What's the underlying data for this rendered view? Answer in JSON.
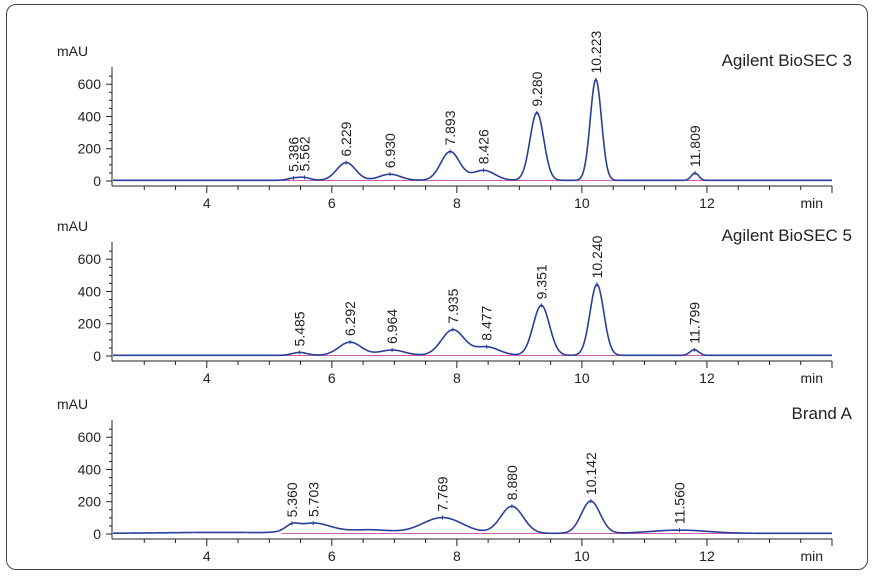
{
  "chart_data": [
    {
      "type": "line",
      "title": "Agilent BioSEC 3",
      "ylabel": "mAU",
      "xlabel": "min",
      "xlim": [
        2.5,
        14.0
      ],
      "ylim": [
        -15,
        680
      ],
      "x_ticks": [
        4,
        6,
        8,
        10,
        12
      ],
      "y_ticks": [
        0,
        200,
        400,
        600
      ],
      "peaks": [
        {
          "x": 5.386,
          "y": 12,
          "label": "5.386",
          "w": 0.1
        },
        {
          "x": 5.562,
          "y": 16,
          "label": "5.562",
          "w": 0.1
        },
        {
          "x": 6.229,
          "y": 110,
          "label": "6.229",
          "w": 0.15
        },
        {
          "x": 6.93,
          "y": 38,
          "label": "6.930",
          "w": 0.17
        },
        {
          "x": 7.893,
          "y": 178,
          "label": "7.893",
          "w": 0.15
        },
        {
          "x": 8.426,
          "y": 62,
          "label": "8.426",
          "w": 0.18
        },
        {
          "x": 9.28,
          "y": 420,
          "label": "9.280",
          "w": 0.11
        },
        {
          "x": 10.223,
          "y": 625,
          "label": "10.223",
          "w": 0.09
        },
        {
          "x": 11.809,
          "y": 45,
          "label": "11.809",
          "w": 0.06
        }
      ]
    },
    {
      "type": "line",
      "title": "Agilent BioSEC 5",
      "ylabel": "mAU",
      "xlabel": "min",
      "xlim": [
        2.5,
        14.0
      ],
      "ylim": [
        -15,
        680
      ],
      "x_ticks": [
        4,
        6,
        8,
        10,
        12
      ],
      "y_ticks": [
        0,
        200,
        400,
        600
      ],
      "peaks": [
        {
          "x": 5.485,
          "y": 18,
          "label": "5.485",
          "w": 0.12
        },
        {
          "x": 6.292,
          "y": 82,
          "label": "6.292",
          "w": 0.18
        },
        {
          "x": 6.964,
          "y": 33,
          "label": "6.964",
          "w": 0.2
        },
        {
          "x": 7.935,
          "y": 158,
          "label": "7.935",
          "w": 0.18
        },
        {
          "x": 8.477,
          "y": 52,
          "label": "8.477",
          "w": 0.2
        },
        {
          "x": 9.351,
          "y": 310,
          "label": "9.351",
          "w": 0.13
        },
        {
          "x": 10.24,
          "y": 440,
          "label": "10.240",
          "w": 0.11
        },
        {
          "x": 11.799,
          "y": 35,
          "label": "11.799",
          "w": 0.07
        }
      ]
    },
    {
      "type": "line",
      "title": "Brand A",
      "ylabel": "mAU",
      "xlabel": "min",
      "xlim": [
        2.5,
        14.0
      ],
      "ylim": [
        -15,
        680
      ],
      "x_ticks": [
        4,
        6,
        8,
        10,
        12
      ],
      "y_ticks": [
        0,
        200,
        400,
        600
      ],
      "peaks": [
        {
          "x": 5.36,
          "y": 30,
          "label": "5.360",
          "w": 0.1
        },
        {
          "x": 5.703,
          "y": 62,
          "label": "5.703",
          "w": 0.28
        },
        {
          "x": 6.6,
          "y": 22,
          "label": "",
          "w": 0.35
        },
        {
          "x": 7.769,
          "y": 98,
          "label": "7.769",
          "w": 0.32
        },
        {
          "x": 8.88,
          "y": 168,
          "label": "8.880",
          "w": 0.18
        },
        {
          "x": 10.142,
          "y": 200,
          "label": "10.142",
          "w": 0.15
        },
        {
          "x": 11.56,
          "y": 20,
          "label": "11.560",
          "w": 0.45
        }
      ]
    }
  ]
}
